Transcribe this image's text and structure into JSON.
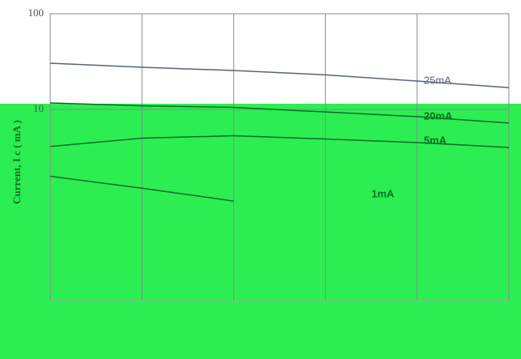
{
  "chart_data": {
    "type": "line",
    "y_label": "Current, I c ( mA )",
    "log_y": true,
    "grid": true,
    "categories": [
      null,
      null,
      null,
      null,
      null,
      null
    ],
    "ylim": [
      0.1,
      100
    ],
    "yticks": [
      10,
      100
    ],
    "series": [
      {
        "name": "25mA",
        "color": "#55647e",
        "values": [
          30.4,
          27.6,
          25.5,
          23.0,
          19.8,
          16.9
        ]
      },
      {
        "name": "20mA",
        "color": "#0b6e1f",
        "values": [
          11.7,
          10.9,
          10.5,
          9.4,
          8.4,
          7.2
        ]
      },
      {
        "name": "5mA",
        "color": "#0b6e1f",
        "values": [
          4.1,
          5.0,
          5.3,
          4.9,
          4.5,
          4.0
        ]
      },
      {
        "name": "1mA",
        "color": "#0b6e1f",
        "values": [
          2.0,
          1.5,
          1.1,
          null,
          null,
          null
        ]
      }
    ]
  }
}
